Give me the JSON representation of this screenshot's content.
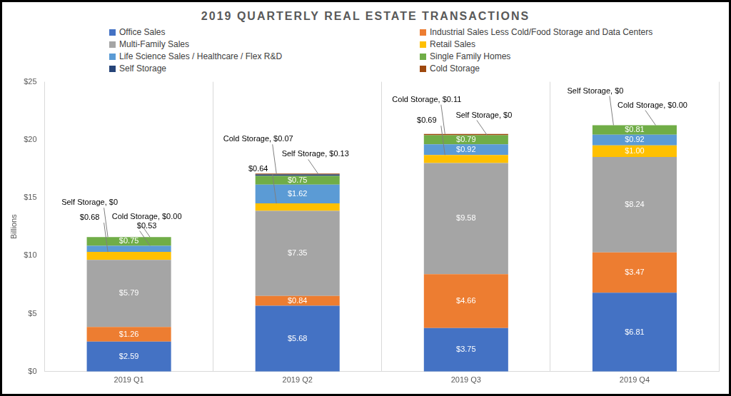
{
  "chart_data": {
    "type": "bar",
    "title": "2019 QUARTERLY REAL ESTATE TRANSACTIONS",
    "y_label": "Billions",
    "categories": [
      "2019 Q1",
      "2019 Q2",
      "2019 Q3",
      "2019 Q4"
    ],
    "stacked": true,
    "data_labels": true,
    "legend": "top",
    "grid": "x",
    "ylim": [
      0,
      25
    ],
    "yticks": [
      {
        "value": 0,
        "label": "$0"
      },
      {
        "value": 5,
        "label": "$5"
      },
      {
        "value": 10,
        "label": "$10"
      },
      {
        "value": 15,
        "label": "$15"
      },
      {
        "value": 20,
        "label": "$20"
      },
      {
        "value": 25,
        "label": "$25"
      }
    ],
    "series": [
      {
        "name": "Office Sales",
        "color": "#4472C4",
        "values": [
          2.59,
          5.68,
          3.75,
          6.81
        ],
        "value_labels": [
          "$2.59",
          "$5.68",
          "$3.75",
          "$6.81"
        ]
      },
      {
        "name": "Industrial Sales Less Cold/Food Storage and Data Centers",
        "color": "#ED7D31",
        "values": [
          1.26,
          0.84,
          4.66,
          3.47
        ],
        "value_labels": [
          "$1.26",
          "$0.84",
          "$4.66",
          "$3.47"
        ]
      },
      {
        "name": "Multi-Family Sales",
        "color": "#A5A5A5",
        "values": [
          5.79,
          7.35,
          9.58,
          8.24
        ],
        "value_labels": [
          "$5.79",
          "$7.35",
          "$9.58",
          "$8.24"
        ]
      },
      {
        "name": "Retail Sales",
        "color": "#FFC000",
        "values": [
          0.68,
          0.64,
          0.69,
          1.0
        ],
        "value_labels": [
          "$0.68",
          "$0.64",
          "$0.69",
          "$1.00"
        ]
      },
      {
        "name": "Life Science Sales / Healthcare / Flex R&D",
        "color": "#5B9BD5",
        "values": [
          0.53,
          1.62,
          0.92,
          0.92
        ],
        "value_labels": [
          "$0.53",
          "$1.62",
          "$0.92",
          "$0.92"
        ]
      },
      {
        "name": "Single Family Homes",
        "color": "#70AD47",
        "values": [
          0.75,
          0.75,
          0.79,
          0.81
        ],
        "value_labels": [
          "$0.75",
          "$0.75",
          "$0.79",
          "$0.81"
        ]
      },
      {
        "name": "Self Storage",
        "color": "#264478",
        "values": [
          0,
          0.13,
          0,
          0
        ],
        "value_labels": [
          "Self Storage, $0",
          "Self Storage, $0.13",
          "Self Storage, $0",
          "Self Storage, $0"
        ]
      },
      {
        "name": "Cold Storage",
        "color": "#9E480E",
        "values": [
          0.0,
          0.07,
          0.11,
          0.0
        ],
        "value_labels": [
          "Cold Storage, $0.00",
          "Cold Storage, $0.07",
          "Cold Storage, $0.11",
          "Cold Storage, $0.00"
        ]
      }
    ]
  }
}
